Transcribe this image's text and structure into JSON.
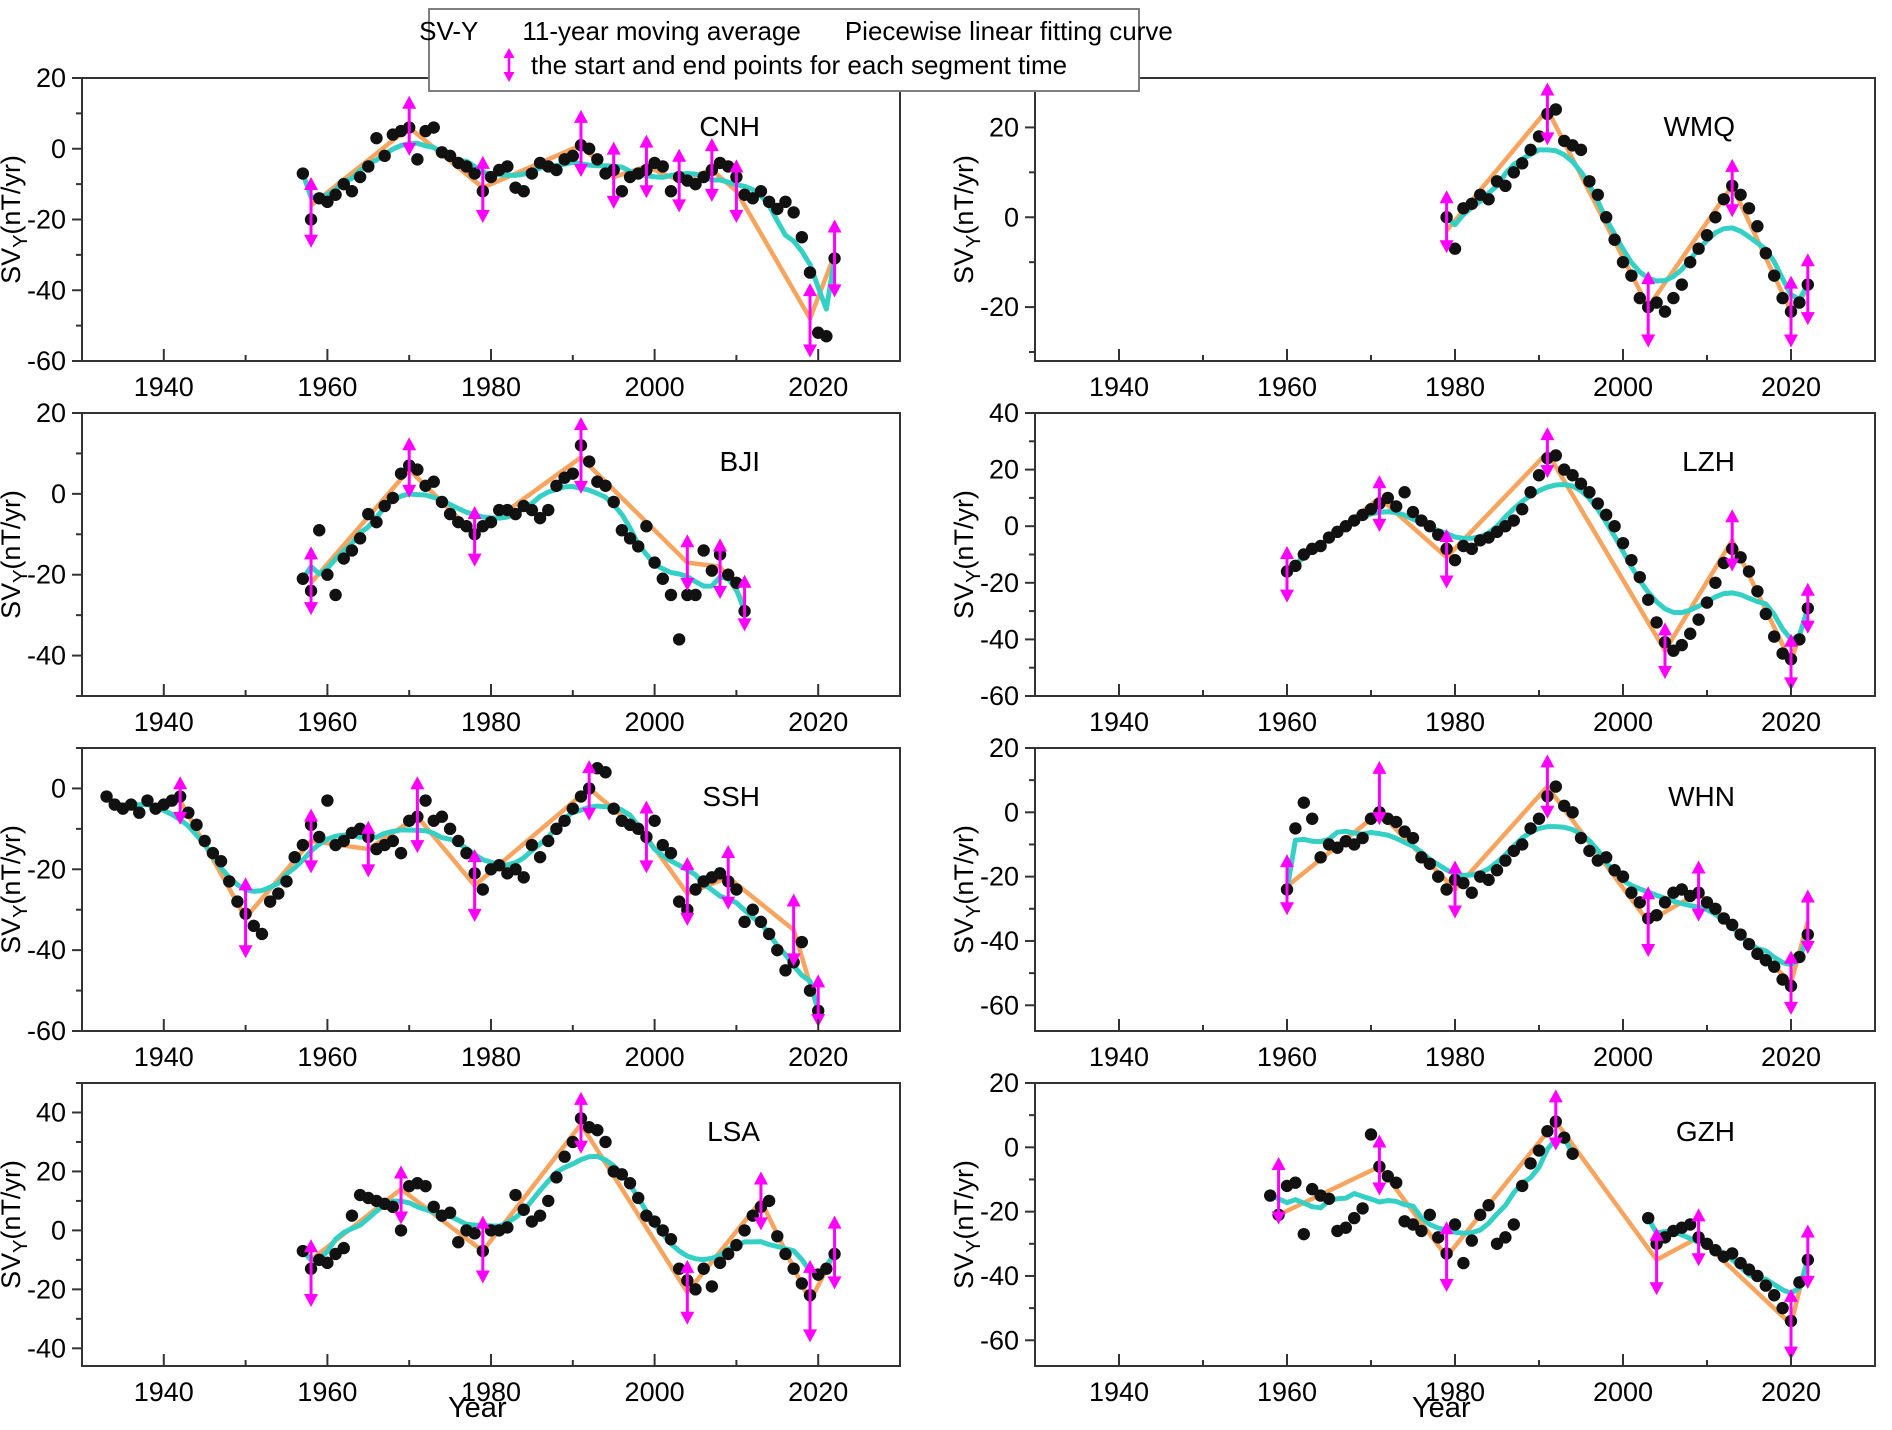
{
  "legend": {
    "sv_label": "SV-Y",
    "ma_label": "11-year moving average",
    "fit_label": "Piecewise linear fitting curve",
    "arrow_label": "the start and end points for each segment time"
  },
  "axis": {
    "x_label": "Year",
    "y_label_prefix": "SV",
    "y_label_sub": "Y",
    "y_label_suffix": "(nT/yr)",
    "x_ticks": [
      1940,
      1960,
      1980,
      2000,
      2020
    ],
    "x_range": [
      1930,
      2030
    ]
  },
  "colors": {
    "dots": "#111111",
    "ma": "#35d0c5",
    "fit": "#f7a45f",
    "arrow": "#ff00ff",
    "frame": "#333333"
  },
  "chart_data": [
    {
      "type": "scatter",
      "station": "CNH",
      "y_ticks": [
        20,
        0,
        -20,
        -40,
        -60
      ],
      "y_range": [
        -60,
        20
      ],
      "start_year": 1957,
      "sv_values": [
        -7,
        -20,
        -14,
        -15,
        -13,
        -10,
        -12,
        -8,
        -5,
        3,
        -2,
        4,
        5,
        6,
        -3,
        5,
        6,
        -1,
        -2,
        -4,
        -5,
        -7,
        -12,
        -8,
        -6,
        -5,
        -11,
        -12,
        -7,
        -4,
        -5,
        -6,
        -3,
        -2,
        1,
        0,
        -3,
        -7,
        -6,
        -12,
        -8,
        -7,
        -6,
        -4,
        -5,
        -12,
        -8,
        -9,
        -10,
        -8,
        -6,
        -4,
        -5,
        -8,
        -13,
        -14,
        -12,
        -15,
        -17,
        -15,
        -18,
        -25,
        -35,
        -52,
        -53,
        -31
      ],
      "fit_nodes": [
        [
          1958,
          -16
        ],
        [
          1970,
          6
        ],
        [
          1979,
          -11
        ],
        [
          1991,
          1
        ],
        [
          1995,
          -8
        ],
        [
          1999,
          -5
        ],
        [
          2003,
          -9
        ],
        [
          2007,
          -6
        ],
        [
          2010,
          -12
        ],
        [
          2019,
          -48
        ],
        [
          2022,
          -30
        ]
      ],
      "arrows": [
        [
          1958,
          -8,
          -28
        ],
        [
          1970,
          15,
          -2
        ],
        [
          1979,
          -2,
          -21
        ],
        [
          1991,
          11,
          -8
        ],
        [
          1995,
          2,
          -17
        ],
        [
          1999,
          4,
          -14
        ],
        [
          2003,
          0,
          -18
        ],
        [
          2007,
          3,
          -15
        ],
        [
          2010,
          -3,
          -21
        ],
        [
          2019,
          -38,
          -59
        ],
        [
          2022,
          -20,
          -42
        ]
      ]
    },
    {
      "type": "scatter",
      "station": "WMQ",
      "y_ticks": [
        20,
        0,
        -20
      ],
      "y_range": [
        -32,
        31
      ],
      "start_year": 1979,
      "sv_values": [
        0,
        -7,
        2,
        3,
        5,
        4,
        8,
        7,
        10,
        12,
        15,
        18,
        23,
        24,
        17,
        16,
        15,
        8,
        5,
        0,
        -5,
        -10,
        -13,
        -18,
        -20,
        -19,
        -21,
        -18,
        -15,
        -10,
        -7,
        -4,
        0,
        4,
        7,
        5,
        2,
        -2,
        -8,
        -13,
        -18,
        -21,
        -19,
        -15
      ],
      "fit_nodes": [
        [
          1979,
          -3
        ],
        [
          1991,
          24
        ],
        [
          2003,
          -20
        ],
        [
          2013,
          7
        ],
        [
          2020,
          -21
        ],
        [
          2022,
          -16
        ]
      ],
      "arrows": [
        [
          1979,
          6,
          -8
        ],
        [
          1991,
          30,
          16
        ],
        [
          2003,
          -12,
          -29
        ],
        [
          2013,
          13,
          0
        ],
        [
          2020,
          -13,
          -29
        ],
        [
          2022,
          -8,
          -24
        ]
      ]
    },
    {
      "type": "scatter",
      "station": "BJI",
      "y_ticks": [
        20,
        0,
        -20,
        -40
      ],
      "y_range": [
        -50,
        20
      ],
      "start_year": 1957,
      "sv_values": [
        -21,
        -24,
        -9,
        -20,
        -25,
        -16,
        -14,
        -11,
        -5,
        -7,
        -3,
        -1,
        5,
        7,
        6,
        2,
        3,
        -2,
        -5,
        -7,
        -8,
        -10,
        -8,
        -7,
        -4,
        -4,
        -5,
        -3,
        -4,
        -6,
        -4,
        2,
        4,
        5,
        12,
        8,
        3,
        2,
        -2,
        -9,
        -11,
        -13,
        -8,
        -17,
        -21,
        -25,
        -36,
        -25,
        -25,
        -14,
        -19,
        -15,
        -20,
        -22,
        -29
      ],
      "fit_nodes": [
        [
          1958,
          -22
        ],
        [
          1970,
          6
        ],
        [
          1978,
          -10
        ],
        [
          1991,
          9
        ],
        [
          2004,
          -17
        ],
        [
          2008,
          -18
        ],
        [
          2011,
          -27
        ]
      ],
      "arrows": [
        [
          1958,
          -13,
          -30
        ],
        [
          1970,
          14,
          -1
        ],
        [
          1978,
          -3,
          -18
        ],
        [
          1991,
          19,
          0
        ],
        [
          2004,
          -10,
          -24
        ],
        [
          2008,
          -11,
          -26
        ],
        [
          2011,
          -20,
          -34
        ]
      ]
    },
    {
      "type": "scatter",
      "station": "LZH",
      "y_ticks": [
        40,
        20,
        0,
        -20,
        -40,
        -60
      ],
      "y_range": [
        -60,
        40
      ],
      "start_year": 1960,
      "sv_values": [
        -16,
        -14,
        -10,
        -8,
        -7,
        -4,
        -2,
        0,
        2,
        4,
        6,
        8,
        10,
        7,
        12,
        5,
        2,
        0,
        -3,
        -8,
        -12,
        -7,
        -8,
        -5,
        -4,
        -2,
        0,
        2,
        6,
        12,
        18,
        24,
        25,
        20,
        18,
        15,
        12,
        8,
        4,
        0,
        -6,
        -12,
        -18,
        -26,
        -34,
        -41,
        -44,
        -42,
        -38,
        -33,
        -27,
        -20,
        -13,
        -8,
        -11,
        -16,
        -23,
        -31,
        -39,
        -45,
        -47,
        -40,
        -29
      ],
      "fit_nodes": [
        [
          1960,
          -16
        ],
        [
          1971,
          10
        ],
        [
          1979,
          -11
        ],
        [
          1991,
          26
        ],
        [
          2005,
          -44
        ],
        [
          2013,
          -5
        ],
        [
          2020,
          -48
        ],
        [
          2022,
          -29
        ]
      ],
      "arrows": [
        [
          1960,
          -7,
          -27
        ],
        [
          1971,
          18,
          -2
        ],
        [
          1979,
          -1,
          -22
        ],
        [
          1991,
          35,
          17
        ],
        [
          2005,
          -34,
          -54
        ],
        [
          2013,
          6,
          -16
        ],
        [
          2020,
          -38,
          -58
        ],
        [
          2022,
          -20,
          -38
        ]
      ]
    },
    {
      "type": "scatter",
      "station": "SSH",
      "y_ticks": [
        0,
        -20,
        -40,
        -60
      ],
      "y_range": [
        -60,
        10
      ],
      "start_year": 1933,
      "sv_values": [
        -2,
        -4,
        -5,
        -4,
        -6,
        -3,
        -5,
        -4,
        -3,
        -2,
        -6,
        -9,
        -13,
        -16,
        -18,
        -23,
        -28,
        -31,
        -34,
        -36,
        -28,
        -26,
        -23,
        -17,
        -14,
        -9,
        -12,
        -3,
        -14,
        -13,
        -11,
        -10,
        -12,
        -15,
        -14,
        -13,
        -16,
        -8,
        -7,
        -3,
        -8,
        -7,
        -10,
        -13,
        -16,
        -21,
        -25,
        -20,
        -19,
        -21,
        -20,
        -22,
        -14,
        -17,
        -13,
        -10,
        -8,
        -5,
        -2,
        0,
        5,
        4,
        -5,
        -8,
        -9,
        -10,
        -12,
        -8,
        -14,
        -16,
        -28,
        -30,
        -25,
        -23,
        -22,
        -21,
        -23,
        -25,
        -33,
        -30,
        -33,
        -36,
        -40,
        -45,
        -43,
        -38,
        -50,
        -55
      ],
      "fit_nodes": [
        [
          1942,
          -3
        ],
        [
          1950,
          -32
        ],
        [
          1958,
          -13
        ],
        [
          1965,
          -15
        ],
        [
          1971,
          -7
        ],
        [
          1978,
          -24
        ],
        [
          1992,
          0
        ],
        [
          1999,
          -12
        ],
        [
          2004,
          -26
        ],
        [
          2009,
          -22
        ],
        [
          2017,
          -35
        ],
        [
          2020,
          -55
        ]
      ],
      "arrows": [
        [
          1942,
          3,
          -9
        ],
        [
          1950,
          -22,
          -42
        ],
        [
          1958,
          -5,
          -21
        ],
        [
          1965,
          -8,
          -22
        ],
        [
          1971,
          3,
          -16
        ],
        [
          1978,
          -15,
          -33
        ],
        [
          1992,
          7,
          -8
        ],
        [
          1999,
          -3,
          -21
        ],
        [
          2004,
          -17,
          -34
        ],
        [
          2009,
          -14,
          -30
        ],
        [
          2017,
          -26,
          -44
        ],
        [
          2020,
          -46,
          -59
        ]
      ]
    },
    {
      "type": "scatter",
      "station": "WHN",
      "y_ticks": [
        20,
        0,
        -20,
        -40,
        -60
      ],
      "y_range": [
        -68,
        20
      ],
      "start_year": 1960,
      "sv_values": [
        -24,
        -5,
        3,
        -2,
        -14,
        -10,
        -11,
        -9,
        -10,
        -8,
        -2,
        0,
        -2,
        -3,
        -6,
        -8,
        -14,
        -16,
        -20,
        -24,
        -21,
        -22,
        -25,
        -20,
        -21,
        -18,
        -15,
        -12,
        -10,
        -5,
        -2,
        5,
        8,
        2,
        0,
        -8,
        -12,
        -15,
        -14,
        -18,
        -20,
        -25,
        -28,
        -33,
        -32,
        -28,
        -25,
        -24,
        -26,
        -25,
        -28,
        -30,
        -33,
        -35,
        -38,
        -41,
        -44,
        -46,
        -48,
        -52,
        -54,
        -45,
        -38
      ],
      "fit_nodes": [
        [
          1960,
          -23
        ],
        [
          1971,
          0
        ],
        [
          1980,
          -24
        ],
        [
          1991,
          8
        ],
        [
          2003,
          -34
        ],
        [
          2009,
          -25
        ],
        [
          2020,
          -53
        ],
        [
          2022,
          -34
        ]
      ],
      "arrows": [
        [
          1960,
          -13,
          -32
        ],
        [
          1971,
          16,
          -4
        ],
        [
          1980,
          -15,
          -33
        ],
        [
          1991,
          18,
          -2
        ],
        [
          2003,
          -23,
          -45
        ],
        [
          2009,
          -15,
          -34
        ],
        [
          2020,
          -43,
          -63
        ],
        [
          2022,
          -24,
          -44
        ]
      ]
    },
    {
      "type": "scatter",
      "station": "LSA",
      "y_ticks": [
        40,
        20,
        0,
        -20,
        -40
      ],
      "y_range": [
        -46,
        50
      ],
      "start_year": 1957,
      "sv_values": [
        -7,
        -13,
        -10,
        -11,
        -8,
        -6,
        5,
        12,
        11,
        10,
        9,
        8,
        0,
        15,
        16,
        15,
        8,
        5,
        6,
        -4,
        0,
        -1,
        -7,
        0,
        0,
        1,
        12,
        7,
        3,
        5,
        10,
        18,
        25,
        30,
        38,
        35,
        34,
        30,
        20,
        19,
        16,
        11,
        5,
        3,
        0,
        -3,
        -13,
        -17,
        -20,
        -13,
        -19,
        -11,
        -8,
        -5,
        0,
        5,
        8,
        10,
        -2,
        -8,
        -13,
        -18,
        -22,
        -15,
        -13,
        -8
      ],
      "fit_nodes": [
        [
          1958,
          -10
        ],
        [
          1969,
          14
        ],
        [
          1979,
          -7
        ],
        [
          1991,
          36
        ],
        [
          2004,
          -21
        ],
        [
          2013,
          10
        ],
        [
          2019,
          -24
        ],
        [
          2022,
          -8
        ]
      ],
      "arrows": [
        [
          1958,
          -3,
          -26
        ],
        [
          1969,
          22,
          2
        ],
        [
          1979,
          5,
          -18
        ],
        [
          1991,
          47,
          26
        ],
        [
          2004,
          -10,
          -32
        ],
        [
          2013,
          20,
          0
        ],
        [
          2019,
          -10,
          -38
        ],
        [
          2022,
          5,
          -20
        ]
      ]
    },
    {
      "type": "scatter",
      "station": "GZH",
      "y_ticks": [
        20,
        0,
        -20,
        -40,
        -60
      ],
      "y_range": [
        -68,
        20
      ],
      "start_year": 1958,
      "sv_values": [
        -15,
        -21,
        -12,
        -11,
        -27,
        -13,
        -15,
        -16,
        -26,
        -25,
        -22,
        -19,
        4,
        -6,
        -9,
        -11,
        -23,
        -24,
        -26,
        -21,
        -28,
        -33,
        -24,
        -36,
        -29,
        -21,
        -18,
        -30,
        -28,
        -24,
        -12,
        -5,
        -1,
        5,
        8,
        3,
        -2,
        null,
        null,
        null,
        null,
        null,
        null,
        null,
        null,
        -22,
        -30,
        -28,
        -26,
        -25,
        -24,
        -28,
        -30,
        -32,
        -34,
        -33,
        -36,
        -38,
        -40,
        -43,
        -46,
        -50,
        -54,
        -42,
        -35
      ],
      "fit_nodes": [
        [
          1959,
          -21
        ],
        [
          1971,
          -6
        ],
        [
          1979,
          -34
        ],
        [
          1992,
          8
        ],
        [
          2004,
          -35
        ],
        [
          2009,
          -28
        ],
        [
          2020,
          -55
        ],
        [
          2022,
          -34
        ]
      ],
      "arrows": [
        [
          1959,
          -3,
          -24
        ],
        [
          1971,
          4,
          -15
        ],
        [
          1979,
          -23,
          -45
        ],
        [
          1992,
          18,
          -1
        ],
        [
          2004,
          -25,
          -46
        ],
        [
          2009,
          -19,
          -37
        ],
        [
          2020,
          -44,
          -66
        ],
        [
          2022,
          -24,
          -44
        ]
      ]
    }
  ]
}
